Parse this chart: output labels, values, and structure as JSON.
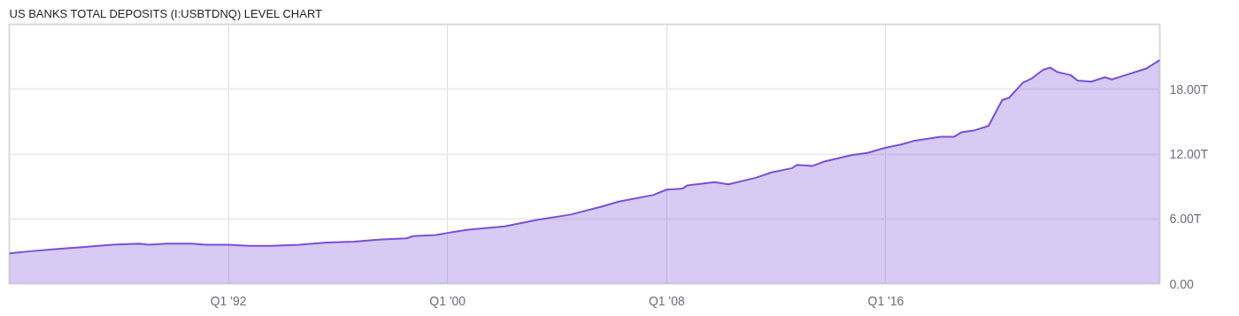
{
  "chart_data": {
    "type": "area",
    "title": "US BANKS TOTAL DEPOSITS (I:USBTDNQ) LEVEL CHART",
    "xlim": [
      "1984-01",
      "2026-01"
    ],
    "xticks": [
      {
        "value": "1992-01",
        "label": "Q1 '92"
      },
      {
        "value": "2000-01",
        "label": "Q1 '00"
      },
      {
        "value": "2008-01",
        "label": "Q1 '08"
      },
      {
        "value": "2016-01",
        "label": "Q1 '16"
      }
    ],
    "ylim": [
      0,
      24
    ],
    "yticks": [
      {
        "value": 0,
        "label": "0.00"
      },
      {
        "value": 6,
        "label": "6.00T"
      },
      {
        "value": 12,
        "label": "12.00T"
      },
      {
        "value": 18,
        "label": "18.00T"
      }
    ],
    "grid": true,
    "series": [
      {
        "color": "#7b4fd6",
        "x": [
          "1984-01",
          "1984-10",
          "1985-09",
          "1986-10",
          "1987-10",
          "1988-10",
          "1989-02",
          "1989-10",
          "1990-09",
          "1991-03",
          "1992-01",
          "1992-10",
          "1993-02",
          "1993-08",
          "1994-08",
          "1995-08",
          "1996-08",
          "1997-08",
          "1998-07",
          "1998-10",
          "1999-08",
          "2000-01",
          "2000-10",
          "2002-02",
          "2003-04",
          "2004-07",
          "2005-08",
          "2006-04",
          "2007-07",
          "2008-01",
          "2008-08",
          "2008-10",
          "2009-10",
          "2010-04",
          "2011-04",
          "2011-11",
          "2012-08",
          "2012-10",
          "2013-05",
          "2013-10",
          "2014-10",
          "2015-05",
          "2016-01",
          "2016-08",
          "2017-01",
          "2018-01",
          "2018-07",
          "2018-10",
          "2019-04",
          "2019-10",
          "2020-04",
          "2020-07",
          "2021-01",
          "2021-05",
          "2021-10",
          "2022-01",
          "2022-04",
          "2022-10",
          "2023-01",
          "2023-07",
          "2024-01",
          "2024-04",
          "2024-10",
          "2025-04",
          "2025-07",
          "2026-01"
        ],
        "values": [
          2.8,
          3.0,
          3.2,
          3.4,
          3.6,
          3.7,
          3.6,
          3.7,
          3.7,
          3.6,
          3.6,
          3.5,
          3.5,
          3.5,
          3.6,
          3.8,
          3.9,
          4.1,
          4.2,
          4.4,
          4.5,
          4.7,
          5.0,
          5.3,
          5.9,
          6.4,
          7.1,
          7.6,
          8.2,
          8.7,
          8.8,
          9.1,
          9.4,
          9.2,
          9.8,
          10.3,
          10.7,
          11.0,
          10.9,
          11.3,
          11.9,
          12.1,
          12.6,
          12.9,
          13.2,
          13.6,
          13.6,
          14.0,
          14.2,
          14.6,
          17.0,
          17.2,
          18.6,
          19.0,
          19.8,
          20.0,
          19.6,
          19.3,
          18.8,
          18.7,
          19.1,
          18.9,
          19.3,
          19.7,
          19.9,
          20.7
        ]
      }
    ]
  }
}
